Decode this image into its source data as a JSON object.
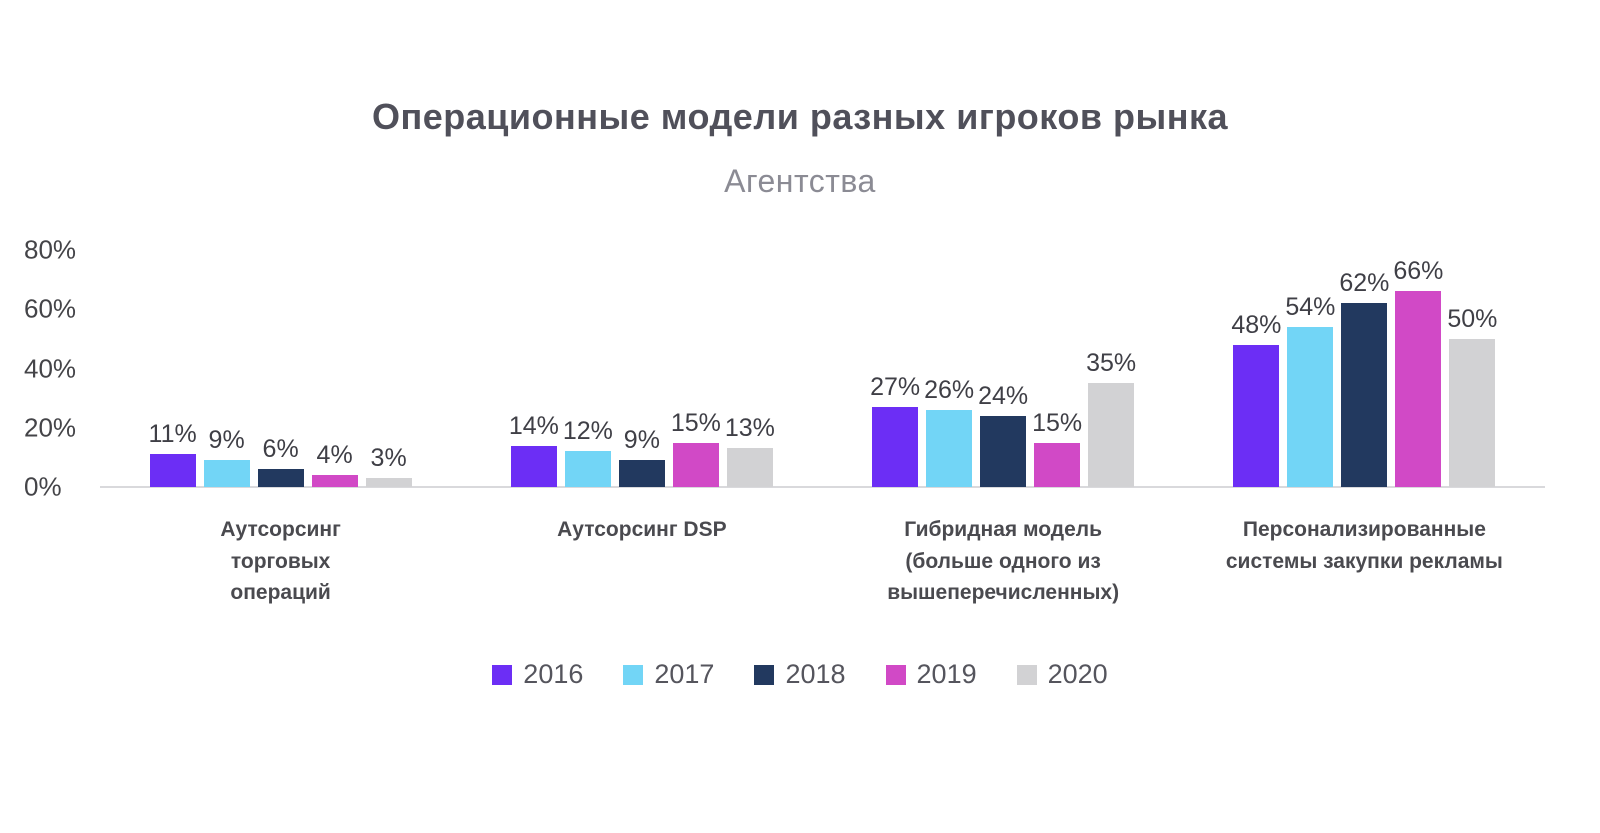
{
  "title": "Операционные модели разных игроков рынка",
  "subtitle": "Агентства",
  "chart_data": {
    "type": "bar",
    "title": "Операционные модели разных игроков рынка",
    "subtitle": "Агентства",
    "value_suffix": "%",
    "ylim": [
      0,
      80
    ],
    "yticks": [
      "80%",
      "60%",
      "40%",
      "20%",
      "0%"
    ],
    "grid": "off",
    "legend_position": "bottom",
    "categories": [
      "Аутсорсинг\nторговых\nопераций",
      "Аутсорсинг DSP",
      "Гибридная модель\n(больше одного из\nвышеперечисленных)",
      "Персонализированные\nсистемы закупки рекламы"
    ],
    "series": [
      {
        "name": "2016",
        "color": "#6c2ef5",
        "values": [
          11,
          14,
          27,
          48
        ]
      },
      {
        "name": "2017",
        "color": "#72d5f6",
        "values": [
          9,
          12,
          26,
          54
        ]
      },
      {
        "name": "2018",
        "color": "#22395f",
        "values": [
          6,
          9,
          24,
          62
        ]
      },
      {
        "name": "2019",
        "color": "#d149c6",
        "values": [
          4,
          15,
          15,
          66
        ]
      },
      {
        "name": "2020",
        "color": "#d2d2d4",
        "values": [
          3,
          13,
          35,
          50
        ]
      }
    ]
  }
}
